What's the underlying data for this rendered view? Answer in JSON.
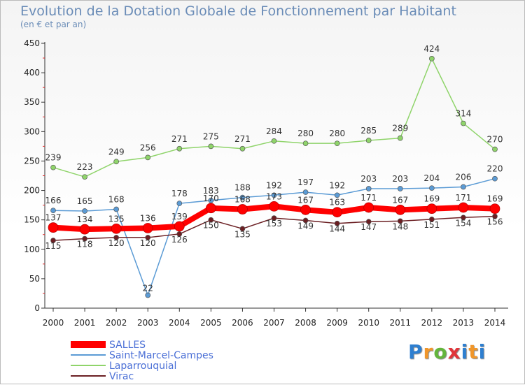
{
  "header": {
    "title": "Evolution de la Dotation Globale de Fonctionnement par Habitant",
    "subtitle": "(en € et par an)"
  },
  "brand": {
    "letters": [
      "P",
      "r",
      "o",
      "x",
      "i",
      "t",
      "i"
    ],
    "colors": [
      "#2e7fd0",
      "#f0962a",
      "#63b53c",
      "#e0353a",
      "#2e7fd0",
      "#f0962a",
      "#2e7fd0"
    ]
  },
  "chart_data": {
    "type": "line",
    "title": "Evolution de la Dotation Globale de Fonctionnement par Habitant",
    "subtitle": "(en € et par an)",
    "x": [
      2000,
      2001,
      2002,
      2003,
      2004,
      2005,
      2006,
      2007,
      2008,
      2009,
      2010,
      2011,
      2012,
      2013,
      2014
    ],
    "ylim": [
      0,
      450
    ],
    "yticks": [
      0,
      50,
      100,
      150,
      200,
      250,
      300,
      350,
      400,
      450
    ],
    "grid": false,
    "legend_position": "bottom-left",
    "series": [
      {
        "name": "Laparrouquial",
        "color": "#8fd46a",
        "values": [
          239,
          223,
          249,
          256,
          271,
          275,
          271,
          284,
          280,
          280,
          285,
          289,
          424,
          314,
          270
        ]
      },
      {
        "name": "Saint-Marcel-Campes",
        "color": "#5b9bd5",
        "values": [
          166,
          165,
          168,
          22,
          178,
          183,
          188,
          192,
          197,
          192,
          203,
          203,
          204,
          206,
          220
        ]
      },
      {
        "name": "Virac",
        "color": "#6b1f23",
        "values": [
          115,
          118,
          120,
          120,
          126,
          150,
          135,
          153,
          149,
          144,
          147,
          148,
          151,
          154,
          156
        ]
      },
      {
        "name": "SALLES",
        "color": "#ff0000",
        "values": [
          137,
          134,
          135,
          136,
          139,
          170,
          168,
          173,
          167,
          163,
          171,
          167,
          169,
          171,
          169
        ]
      }
    ],
    "legend": [
      "SALLES",
      "Saint-Marcel-Campes",
      "Laparrouquial",
      "Virac"
    ]
  }
}
